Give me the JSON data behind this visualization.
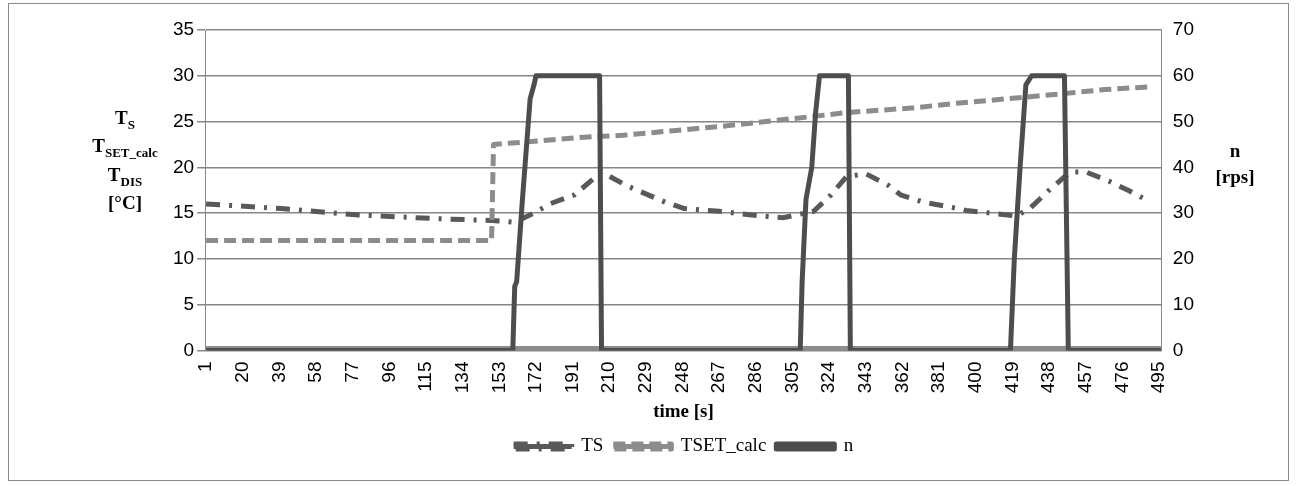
{
  "chart_data": {
    "type": "line",
    "xlabel": "time [s]",
    "ylabel": "T$_{S}$\nT$_{SET_calc}$\nT$_{DIS}$\n[°C]",
    "y2label": "n\n[rps]",
    "xlim": [
      0.5,
      496.5
    ],
    "xticks": [
      1,
      20,
      39,
      58,
      77,
      96,
      115,
      134,
      153,
      172,
      191,
      210,
      229,
      248,
      267,
      286,
      305,
      324,
      343,
      362,
      381,
      400,
      419,
      438,
      457,
      476,
      495
    ],
    "ylim": [
      0,
      35
    ],
    "yticks": [
      0,
      5,
      10,
      15,
      20,
      25,
      30,
      35
    ],
    "y2lim": [
      0,
      70
    ],
    "y2ticks": [
      0,
      10,
      20,
      30,
      40,
      50,
      60,
      70
    ],
    "grid": "y",
    "legend": "bottom",
    "marker": "none",
    "series": [
      {
        "color": "#8c8c8c",
        "x": [
          1,
          496
        ],
        "values": [
          0,
          0
        ]
      },
      {
        "name": "TS",
        "color": "#595959",
        "line_style": "dashdot",
        "x": [
          1,
          40,
          80,
          120,
          149,
          161,
          171,
          179,
          192,
          206,
          219,
          239,
          249,
          267,
          284,
          300,
          316,
          325,
          333,
          343,
          355,
          361,
          373,
          386,
          395,
          408,
          421,
          428,
          438,
          449,
          457,
          469,
          479,
          488
        ],
        "values": [
          16,
          15.5,
          14.8,
          14.4,
          14.2,
          14,
          15,
          16,
          17,
          19.5,
          18,
          16.2,
          15.5,
          15.2,
          14.8,
          14.5,
          15.2,
          17,
          19,
          19.3,
          18,
          17,
          16.2,
          15.7,
          15.3,
          15,
          14.7,
          15.5,
          17.5,
          19.5,
          19.5,
          18.5,
          17.5,
          16.5
        ]
      },
      {
        "name": "TSET_calc",
        "color": "#8c8c8c",
        "line_style": "dashed",
        "x": [
          1,
          149,
          150,
          168,
          197,
          217,
          243,
          269,
          291,
          313,
          334,
          368,
          390,
          417,
          443,
          467,
          491
        ],
        "values": [
          12,
          12,
          22.5,
          22.8,
          23.3,
          23.5,
          24,
          24.5,
          25,
          25.5,
          26,
          26.5,
          27,
          27.5,
          28,
          28.5,
          28.8
        ]
      },
      {
        "name": "n",
        "color": "#4d4d4d",
        "axis": "y2",
        "line_style": "solid",
        "x": [
          1,
          160,
          161,
          162,
          165,
          169,
          171,
          172,
          205,
          206,
          309,
          310,
          312,
          315,
          317,
          319,
          334,
          335,
          418,
          420,
          423,
          426,
          429,
          446,
          448,
          496
        ],
        "values": [
          0,
          0,
          14,
          15,
          33,
          55,
          58,
          60,
          60,
          0,
          0,
          15,
          33,
          40,
          52,
          60,
          60,
          0,
          0,
          20,
          40,
          58,
          60,
          60,
          0,
          0
        ]
      }
    ]
  }
}
